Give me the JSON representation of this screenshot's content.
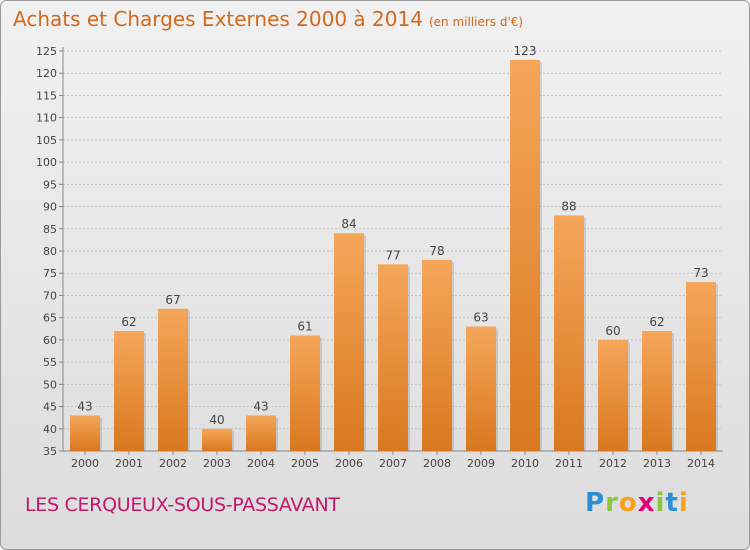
{
  "header": {
    "title": "Achats et Charges Externes 2000 à 2014",
    "unit": "(en milliers d'€)"
  },
  "footer": {
    "commune": "LES CERQUEUX-SOUS-PASSAVANT",
    "logo_text": "Proxiti"
  },
  "colors": {
    "bar_top": "#f5a65a",
    "bar_bottom": "#d9781e",
    "title": "#d2691e",
    "commune": "#c2186b"
  },
  "chart_data": {
    "type": "bar",
    "title": "Achats et Charges Externes 2000 à 2014",
    "subtitle": "(en milliers d'€)",
    "categories": [
      "2000",
      "2001",
      "2002",
      "2003",
      "2004",
      "2005",
      "2006",
      "2007",
      "2008",
      "2009",
      "2010",
      "2011",
      "2012",
      "2013",
      "2014"
    ],
    "values": [
      43,
      62,
      67,
      40,
      43,
      61,
      84,
      77,
      78,
      63,
      123,
      88,
      60,
      62,
      73
    ],
    "ylim": [
      35,
      125
    ],
    "ytick_step": 5,
    "grid": true,
    "legend": "none"
  }
}
